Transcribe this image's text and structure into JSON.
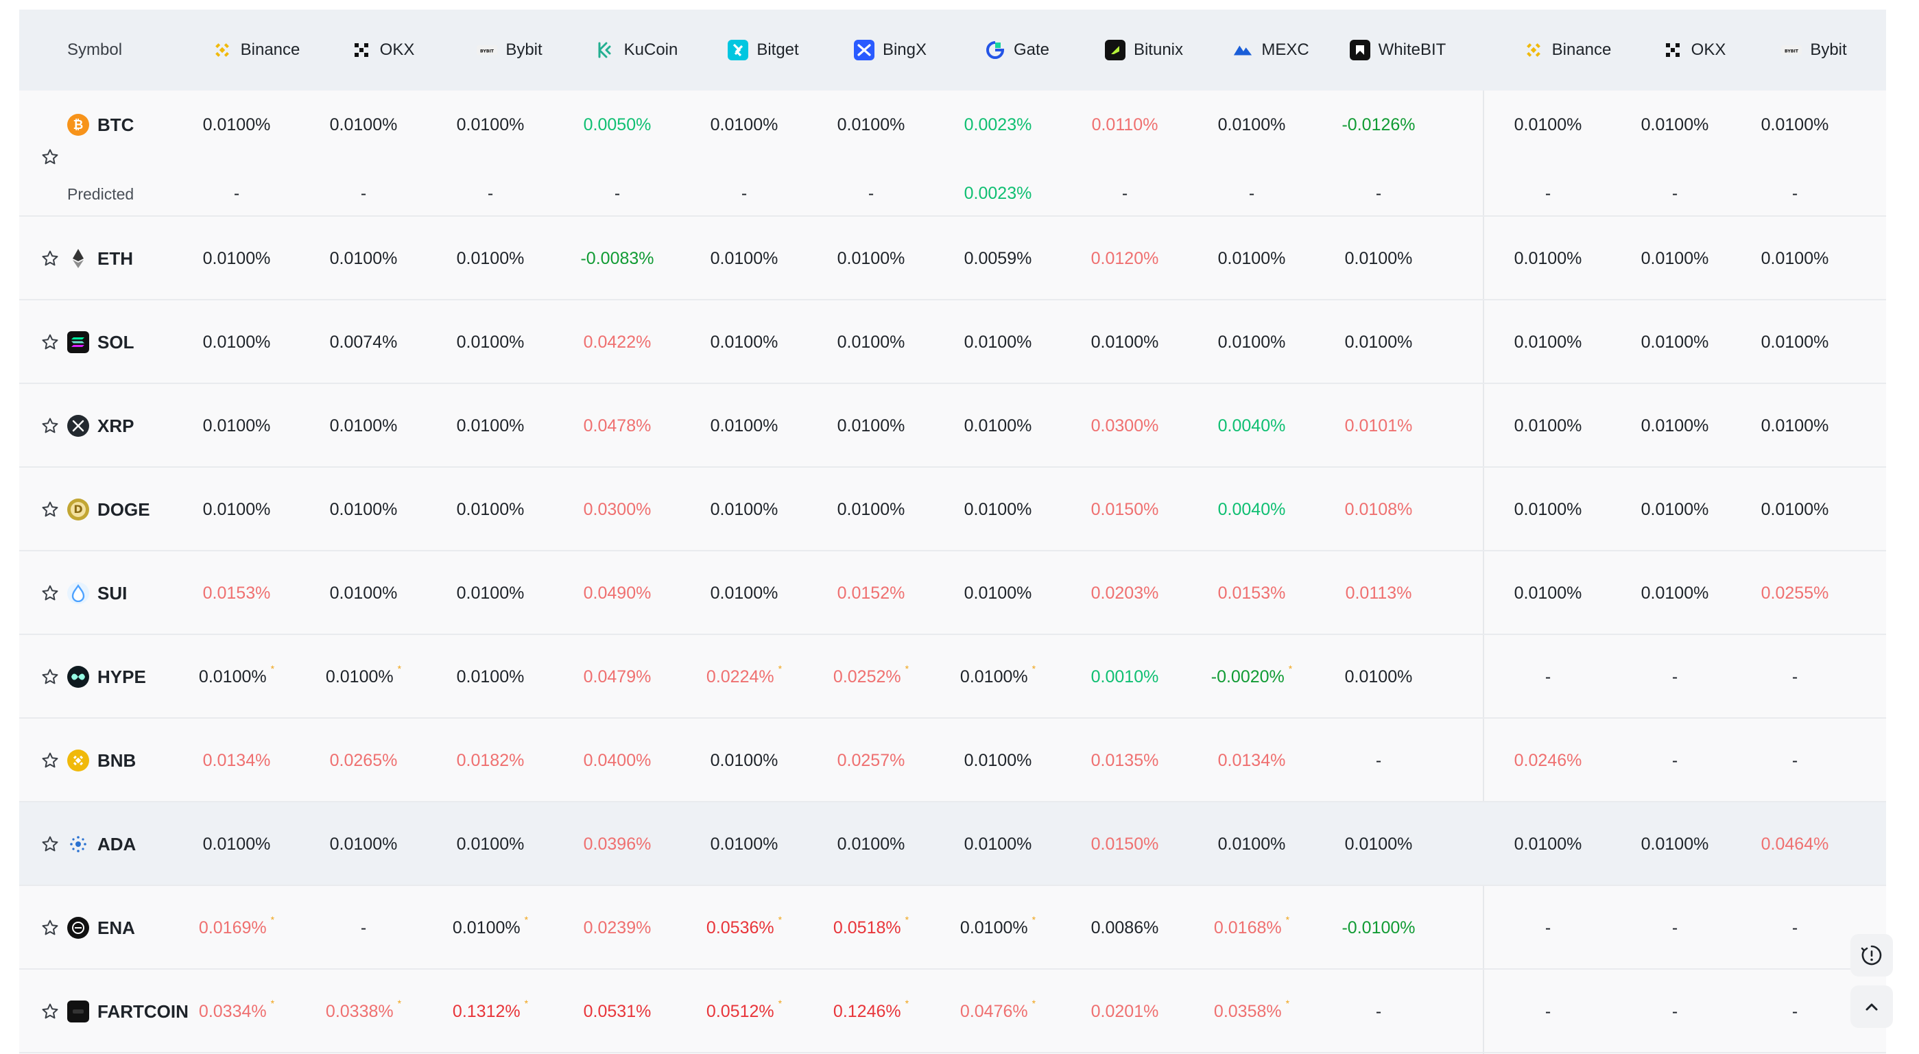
{
  "header": {
    "symbol_label": "Symbol",
    "exchanges": [
      {
        "name": "Binance",
        "icon": "binance-icon"
      },
      {
        "name": "OKX",
        "icon": "okx-icon"
      },
      {
        "name": "Bybit",
        "icon": "bybit-icon"
      },
      {
        "name": "KuCoin",
        "icon": "kucoin-icon"
      },
      {
        "name": "Bitget",
        "icon": "bitget-icon"
      },
      {
        "name": "BingX",
        "icon": "bingx-icon"
      },
      {
        "name": "Gate",
        "icon": "gate-icon"
      },
      {
        "name": "Bitunix",
        "icon": "bitunix-icon"
      },
      {
        "name": "MEXC",
        "icon": "mexc-icon"
      },
      {
        "name": "WhiteBIT",
        "icon": "whitebit-icon"
      },
      {
        "name": "Binance",
        "icon": "binance-icon"
      },
      {
        "name": "OKX",
        "icon": "okx-icon"
      },
      {
        "name": "Bybit",
        "icon": "bybit-icon"
      }
    ]
  },
  "colors": {
    "positive": "#0fbf72",
    "negative_light": "#ef7070",
    "negative_strong": "#e8353a",
    "neutral": "#1e2329",
    "dark_green": "#119b34",
    "marker": "#f0a51a"
  },
  "predicted_label": "Predicted",
  "rows": [
    {
      "symbol": "BTC",
      "icon": "btc-icon",
      "cells": [
        {
          "v": "0.0100%",
          "c": "neu"
        },
        {
          "v": "0.0100%",
          "c": "neu"
        },
        {
          "v": "0.0100%",
          "c": "neu"
        },
        {
          "v": "0.0050%",
          "c": "pos"
        },
        {
          "v": "0.0100%",
          "c": "neu"
        },
        {
          "v": "0.0100%",
          "c": "neu"
        },
        {
          "v": "0.0023%",
          "c": "pos"
        },
        {
          "v": "0.0110%",
          "c": "neg"
        },
        {
          "v": "0.0100%",
          "c": "neu"
        },
        {
          "v": "-0.0126%",
          "c": "dgreen"
        },
        {
          "v": "0.0100%",
          "c": "neu"
        },
        {
          "v": "0.0100%",
          "c": "neu"
        },
        {
          "v": "0.0100%",
          "c": "neu"
        }
      ],
      "predicted": [
        {
          "v": "-",
          "c": "neu"
        },
        {
          "v": "-",
          "c": "neu"
        },
        {
          "v": "-",
          "c": "neu"
        },
        {
          "v": "-",
          "c": "neu"
        },
        {
          "v": "-",
          "c": "neu"
        },
        {
          "v": "-",
          "c": "neu"
        },
        {
          "v": "0.0023%",
          "c": "pos"
        },
        {
          "v": "-",
          "c": "neu"
        },
        {
          "v": "-",
          "c": "neu"
        },
        {
          "v": "-",
          "c": "neu"
        },
        {
          "v": "-",
          "c": "neu"
        },
        {
          "v": "-",
          "c": "neu"
        },
        {
          "v": "-",
          "c": "neu"
        }
      ]
    },
    {
      "symbol": "ETH",
      "icon": "eth-icon",
      "cells": [
        {
          "v": "0.0100%",
          "c": "neu"
        },
        {
          "v": "0.0100%",
          "c": "neu"
        },
        {
          "v": "0.0100%",
          "c": "neu"
        },
        {
          "v": "-0.0083%",
          "c": "dgreen"
        },
        {
          "v": "0.0100%",
          "c": "neu"
        },
        {
          "v": "0.0100%",
          "c": "neu"
        },
        {
          "v": "0.0059%",
          "c": "neu"
        },
        {
          "v": "0.0120%",
          "c": "neg"
        },
        {
          "v": "0.0100%",
          "c": "neu"
        },
        {
          "v": "0.0100%",
          "c": "neu"
        },
        {
          "v": "0.0100%",
          "c": "neu"
        },
        {
          "v": "0.0100%",
          "c": "neu"
        },
        {
          "v": "0.0100%",
          "c": "neu"
        }
      ]
    },
    {
      "symbol": "SOL",
      "icon": "sol-icon",
      "cells": [
        {
          "v": "0.0100%",
          "c": "neu"
        },
        {
          "v": "0.0074%",
          "c": "neu"
        },
        {
          "v": "0.0100%",
          "c": "neu"
        },
        {
          "v": "0.0422%",
          "c": "neg"
        },
        {
          "v": "0.0100%",
          "c": "neu"
        },
        {
          "v": "0.0100%",
          "c": "neu"
        },
        {
          "v": "0.0100%",
          "c": "neu"
        },
        {
          "v": "0.0100%",
          "c": "neu"
        },
        {
          "v": "0.0100%",
          "c": "neu"
        },
        {
          "v": "0.0100%",
          "c": "neu"
        },
        {
          "v": "0.0100%",
          "c": "neu"
        },
        {
          "v": "0.0100%",
          "c": "neu"
        },
        {
          "v": "0.0100%",
          "c": "neu"
        }
      ]
    },
    {
      "symbol": "XRP",
      "icon": "xrp-icon",
      "cells": [
        {
          "v": "0.0100%",
          "c": "neu"
        },
        {
          "v": "0.0100%",
          "c": "neu"
        },
        {
          "v": "0.0100%",
          "c": "neu"
        },
        {
          "v": "0.0478%",
          "c": "neg"
        },
        {
          "v": "0.0100%",
          "c": "neu"
        },
        {
          "v": "0.0100%",
          "c": "neu"
        },
        {
          "v": "0.0100%",
          "c": "neu"
        },
        {
          "v": "0.0300%",
          "c": "neg"
        },
        {
          "v": "0.0040%",
          "c": "pos"
        },
        {
          "v": "0.0101%",
          "c": "neg"
        },
        {
          "v": "0.0100%",
          "c": "neu"
        },
        {
          "v": "0.0100%",
          "c": "neu"
        },
        {
          "v": "0.0100%",
          "c": "neu"
        }
      ]
    },
    {
      "symbol": "DOGE",
      "icon": "doge-icon",
      "cells": [
        {
          "v": "0.0100%",
          "c": "neu"
        },
        {
          "v": "0.0100%",
          "c": "neu"
        },
        {
          "v": "0.0100%",
          "c": "neu"
        },
        {
          "v": "0.0300%",
          "c": "neg"
        },
        {
          "v": "0.0100%",
          "c": "neu"
        },
        {
          "v": "0.0100%",
          "c": "neu"
        },
        {
          "v": "0.0100%",
          "c": "neu"
        },
        {
          "v": "0.0150%",
          "c": "neg"
        },
        {
          "v": "0.0040%",
          "c": "pos"
        },
        {
          "v": "0.0108%",
          "c": "neg"
        },
        {
          "v": "0.0100%",
          "c": "neu"
        },
        {
          "v": "0.0100%",
          "c": "neu"
        },
        {
          "v": "0.0100%",
          "c": "neu"
        }
      ]
    },
    {
      "symbol": "SUI",
      "icon": "sui-icon",
      "cells": [
        {
          "v": "0.0153%",
          "c": "neg"
        },
        {
          "v": "0.0100%",
          "c": "neu"
        },
        {
          "v": "0.0100%",
          "c": "neu"
        },
        {
          "v": "0.0490%",
          "c": "neg"
        },
        {
          "v": "0.0100%",
          "c": "neu"
        },
        {
          "v": "0.0152%",
          "c": "neg"
        },
        {
          "v": "0.0100%",
          "c": "neu"
        },
        {
          "v": "0.0203%",
          "c": "neg"
        },
        {
          "v": "0.0153%",
          "c": "neg"
        },
        {
          "v": "0.0113%",
          "c": "neg"
        },
        {
          "v": "0.0100%",
          "c": "neu"
        },
        {
          "v": "0.0100%",
          "c": "neu"
        },
        {
          "v": "0.0255%",
          "c": "neg"
        }
      ]
    },
    {
      "symbol": "HYPE",
      "icon": "hype-icon",
      "cells": [
        {
          "v": "0.0100%",
          "c": "neu",
          "m": "*"
        },
        {
          "v": "0.0100%",
          "c": "neu",
          "m": "*"
        },
        {
          "v": "0.0100%",
          "c": "neu"
        },
        {
          "v": "0.0479%",
          "c": "neg"
        },
        {
          "v": "0.0224%",
          "c": "neg",
          "m": "*"
        },
        {
          "v": "0.0252%",
          "c": "neg",
          "m": "*"
        },
        {
          "v": "0.0100%",
          "c": "neu",
          "m": "*"
        },
        {
          "v": "0.0010%",
          "c": "pos"
        },
        {
          "v": "-0.0020%",
          "c": "dgreen",
          "m": "*"
        },
        {
          "v": "0.0100%",
          "c": "neu"
        },
        {
          "v": "-",
          "c": "neu"
        },
        {
          "v": "-",
          "c": "neu"
        },
        {
          "v": "-",
          "c": "neu"
        }
      ]
    },
    {
      "symbol": "BNB",
      "icon": "bnb-icon",
      "cells": [
        {
          "v": "0.0134%",
          "c": "neg"
        },
        {
          "v": "0.0265%",
          "c": "neg"
        },
        {
          "v": "0.0182%",
          "c": "neg"
        },
        {
          "v": "0.0400%",
          "c": "neg"
        },
        {
          "v": "0.0100%",
          "c": "neu"
        },
        {
          "v": "0.0257%",
          "c": "neg"
        },
        {
          "v": "0.0100%",
          "c": "neu"
        },
        {
          "v": "0.0135%",
          "c": "neg"
        },
        {
          "v": "0.0134%",
          "c": "neg"
        },
        {
          "v": "-",
          "c": "neu"
        },
        {
          "v": "0.0246%",
          "c": "neg"
        },
        {
          "v": "-",
          "c": "neu"
        },
        {
          "v": "-",
          "c": "neu"
        }
      ]
    },
    {
      "symbol": "ADA",
      "icon": "ada-icon",
      "highlight": true,
      "cells": [
        {
          "v": "0.0100%",
          "c": "neu"
        },
        {
          "v": "0.0100%",
          "c": "neu"
        },
        {
          "v": "0.0100%",
          "c": "neu"
        },
        {
          "v": "0.0396%",
          "c": "neg"
        },
        {
          "v": "0.0100%",
          "c": "neu"
        },
        {
          "v": "0.0100%",
          "c": "neu"
        },
        {
          "v": "0.0100%",
          "c": "neu"
        },
        {
          "v": "0.0150%",
          "c": "neg"
        },
        {
          "v": "0.0100%",
          "c": "neu"
        },
        {
          "v": "0.0100%",
          "c": "neu"
        },
        {
          "v": "0.0100%",
          "c": "neu"
        },
        {
          "v": "0.0100%",
          "c": "neu"
        },
        {
          "v": "0.0464%",
          "c": "neg"
        }
      ]
    },
    {
      "symbol": "ENA",
      "icon": "ena-icon",
      "cells": [
        {
          "v": "0.0169%",
          "c": "neg",
          "m": "*"
        },
        {
          "v": "-",
          "c": "neu"
        },
        {
          "v": "0.0100%",
          "c": "neu",
          "m": "*"
        },
        {
          "v": "0.0239%",
          "c": "neg"
        },
        {
          "v": "0.0536%",
          "c": "strong",
          "m": "*"
        },
        {
          "v": "0.0518%",
          "c": "strong",
          "m": "*"
        },
        {
          "v": "0.0100%",
          "c": "neu",
          "m": "*"
        },
        {
          "v": "0.0086%",
          "c": "neu"
        },
        {
          "v": "0.0168%",
          "c": "neg",
          "m": "*"
        },
        {
          "v": "-0.0100%",
          "c": "dgreen"
        },
        {
          "v": "-",
          "c": "neu"
        },
        {
          "v": "-",
          "c": "neu"
        },
        {
          "v": "-",
          "c": "neu"
        }
      ]
    },
    {
      "symbol": "FARTCOIN",
      "icon": "fartcoin-icon",
      "cells": [
        {
          "v": "0.0334%",
          "c": "neg",
          "m": "*"
        },
        {
          "v": "0.0338%",
          "c": "neg",
          "m": "*"
        },
        {
          "v": "0.1312%",
          "c": "strong",
          "m": "*"
        },
        {
          "v": "0.0531%",
          "c": "strong"
        },
        {
          "v": "0.0512%",
          "c": "strong",
          "m": "*"
        },
        {
          "v": "0.1246%",
          "c": "strong",
          "m": "*"
        },
        {
          "v": "0.0476%",
          "c": "neg",
          "m": "*"
        },
        {
          "v": "0.0201%",
          "c": "neg"
        },
        {
          "v": "0.0358%",
          "c": "neg",
          "m": "*"
        },
        {
          "v": "-",
          "c": "neu"
        },
        {
          "v": "-",
          "c": "neu"
        },
        {
          "v": "-",
          "c": "neu"
        },
        {
          "v": "-",
          "c": "neu"
        }
      ]
    }
  ],
  "floating": {
    "info_icon": "alert-clock-icon",
    "top_icon": "chevron-up-icon"
  }
}
